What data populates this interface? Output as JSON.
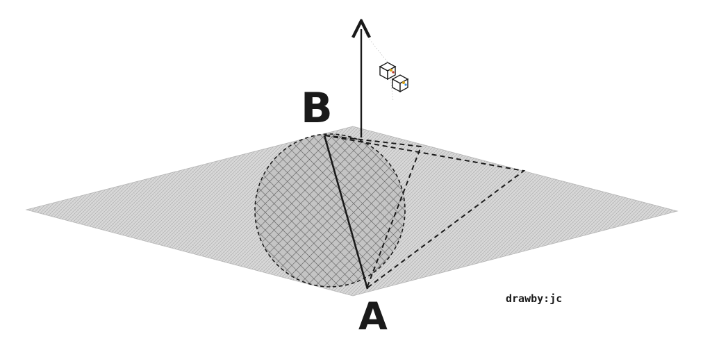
{
  "labels": {
    "point_a": "A",
    "point_b": "B",
    "credit": "drawby:jc"
  },
  "colors": {
    "plane_fill": "#cfcfcf",
    "hatch": "#a8a8a8",
    "disk_hatch": "#5a5a5a",
    "line": "#1a1a1a",
    "background": "#ffffff"
  },
  "icons": {
    "view_cube": "view-cube-icon"
  }
}
